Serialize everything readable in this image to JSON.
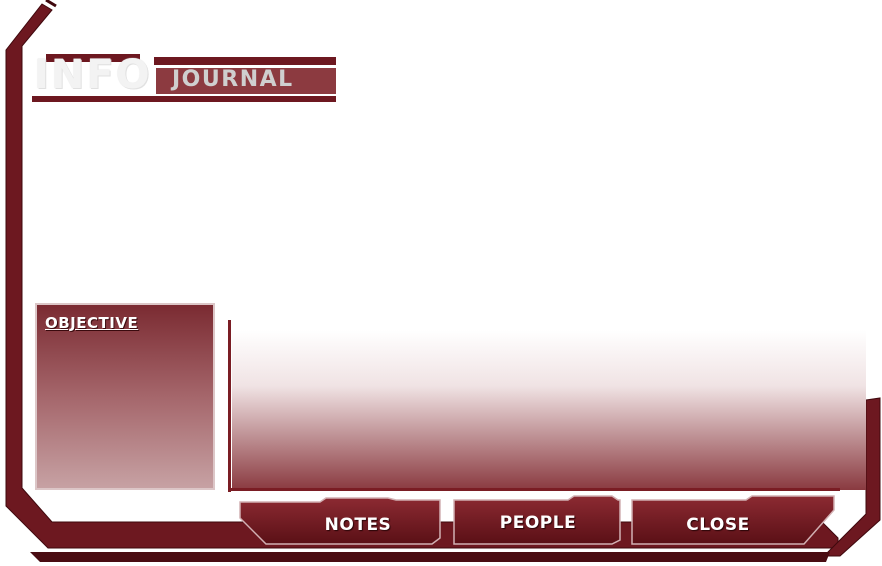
{
  "header": {
    "info_title": "INFO",
    "journal_title": "JOURNAL"
  },
  "objective": {
    "label": "OBJECTIVE"
  },
  "buttons": {
    "notes": "NOTES",
    "people": "PEOPLE",
    "close": "CLOSE"
  },
  "colors": {
    "frame": "#7a1d24",
    "frame_dark": "#4a0c12",
    "panel": "#a85a60"
  }
}
